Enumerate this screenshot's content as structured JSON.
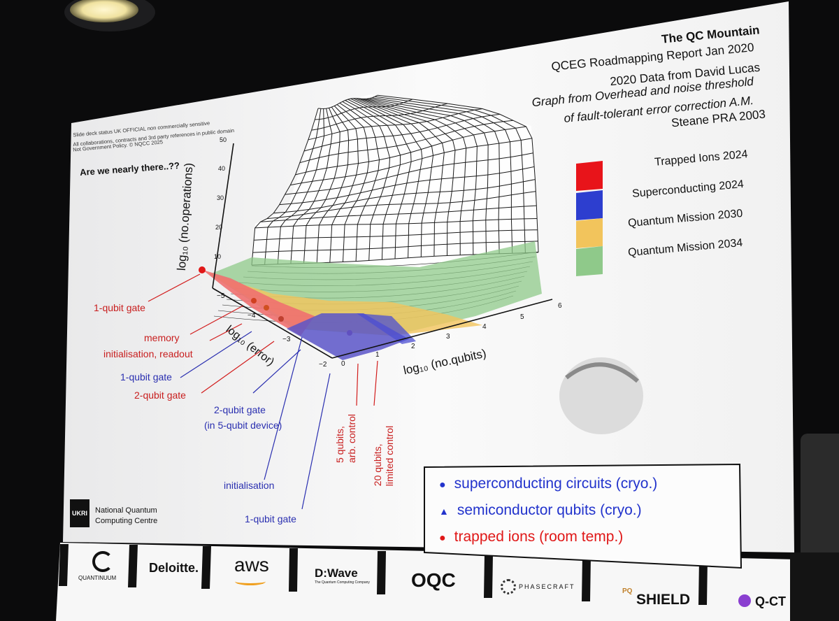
{
  "title": {
    "heading": "The QC Mountain",
    "lines": [
      "QCEG Roadmapping Report Jan 2020",
      "2020 Data from David Lucas",
      "Graph from Overhead and noise threshold",
      "of fault-tolerant error correction A.M.",
      "Steane PRA 2003"
    ]
  },
  "status_note": [
    "Slide deck status UK OFFICIAL non commercially sensitive",
    "All collaborations, contracts and 3rd party references in public domain",
    "Not Government Policy. © NQCC 2025"
  ],
  "question": "Are we nearly there..??",
  "legend": [
    {
      "label": "Trapped Ions 2024",
      "color": "#e8141a"
    },
    {
      "label": "Superconducting 2024",
      "color": "#2d3ecf"
    },
    {
      "label": "Quantum Mission 2030",
      "color": "#f2c45c"
    },
    {
      "label": "Quantum Mission 2034",
      "color": "#8fc98a"
    }
  ],
  "axes": {
    "z_label": "log₁₀ (no.operations)",
    "z_ticks": [
      "50",
      "40",
      "30",
      "20",
      "10"
    ],
    "error_label": "log₁₀ (error)",
    "error_ticks": [
      "−5",
      "−4",
      "−3",
      "−2"
    ],
    "qubits_label": "log₁₀ (no.qubits)",
    "qubits_ticks": [
      "0",
      "1",
      "2",
      "3",
      "4",
      "5",
      "6"
    ]
  },
  "annotations": {
    "red_1qubit": "1-qubit gate",
    "memory": "memory",
    "init_readout": "initialisation, readout",
    "blue_1qubit": "1-qubit gate",
    "red_2qubit": "2-qubit gate",
    "blue_2qubit": "2-qubit gate",
    "blue_2qubit_sub": "(in 5-qubit device)",
    "initialisation": "initialisation",
    "blue_1qubit_b": "1-qubit gate",
    "five_qubits": "5 qubits,",
    "arb_control": "arb. control",
    "twenty_qubits": "20 qubits,",
    "limited_control": "limited control"
  },
  "key_box": [
    {
      "symbol": "●",
      "label": "superconducting circuits (cryo.)",
      "color": "#2233cc"
    },
    {
      "symbol": "▲",
      "label": "semiconductor qubits (cryo.)",
      "color": "#2233cc"
    },
    {
      "symbol": "●",
      "label": "trapped ions (room temp.)",
      "color": "#e01818"
    }
  ],
  "org": {
    "badge": "UKRI",
    "name_line1": "National Quantum",
    "name_line2": "Computing Centre"
  },
  "sponsors": {
    "quantinuum": "QUANTINUUM",
    "deloitte": "Deloitte.",
    "aws": "aws",
    "dwave": "D:Wave",
    "dwave_sub": "The Quantum Computing Company",
    "oqc": "OQC",
    "phasecraft": "PHASECRAFT",
    "pqshield_pq": "PQ",
    "pqshield": "SHIELD",
    "qctrl": "Q-CT"
  }
}
